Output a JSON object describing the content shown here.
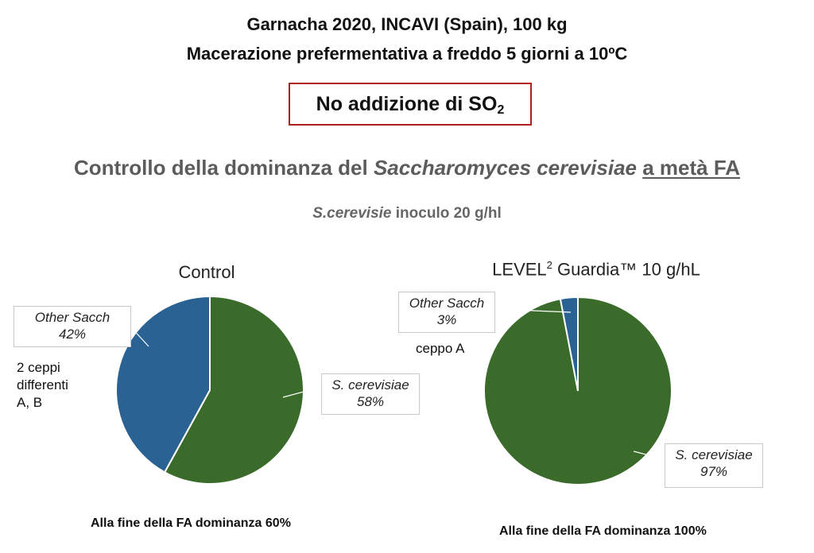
{
  "header": {
    "title_line1": "Garnacha 2020, INCAVI (Spain), 100 kg",
    "title_line2": "Macerazione prefermentativa a freddo 5 giorni a 10ºC",
    "notice_main": "No addizione di SO",
    "notice_sub": "2",
    "heading_pre": "Controllo della dominanza del ",
    "heading_species": "Saccharomyces cerevisiae",
    "heading_post": "a metà FA",
    "inoculum_species": "S.cerevisie",
    "inoculum_text": " inoculo 20 g/hl"
  },
  "charts": {
    "control": {
      "title": "Control",
      "slice_labels": {
        "other": "Other Sacch",
        "cerevisiae": "S. cerevisiae"
      },
      "value_labels": {
        "other": "42%",
        "cerevisiae": "58%"
      },
      "note": [
        "2 ceppi",
        "differenti",
        "A, B"
      ],
      "footer": "Alla fine della FA dominanza 60%"
    },
    "level": {
      "title_pre": "LEVEL",
      "title_sup": "2",
      "title_post": " Guardia™ 10 g/hL",
      "slice_labels": {
        "other": "Other Sacch",
        "cerevisiae": "S. cerevisiae"
      },
      "value_labels": {
        "other": "3%",
        "cerevisiae": "97%"
      },
      "note": [
        "ceppo A"
      ],
      "footer": "Alla fine della FA dominanza 100%"
    }
  },
  "colors": {
    "cerevisiae": "#3a6b2a",
    "other": "#2b6294"
  },
  "chart_data": [
    {
      "type": "pie",
      "title": "Control",
      "categories": [
        "S. cerevisiae",
        "Other Sacch"
      ],
      "values": [
        58,
        42
      ]
    },
    {
      "type": "pie",
      "title": "LEVEL2 Guardia™ 10 g/hL",
      "categories": [
        "S. cerevisiae",
        "Other Sacch"
      ],
      "values": [
        97,
        3
      ]
    }
  ]
}
